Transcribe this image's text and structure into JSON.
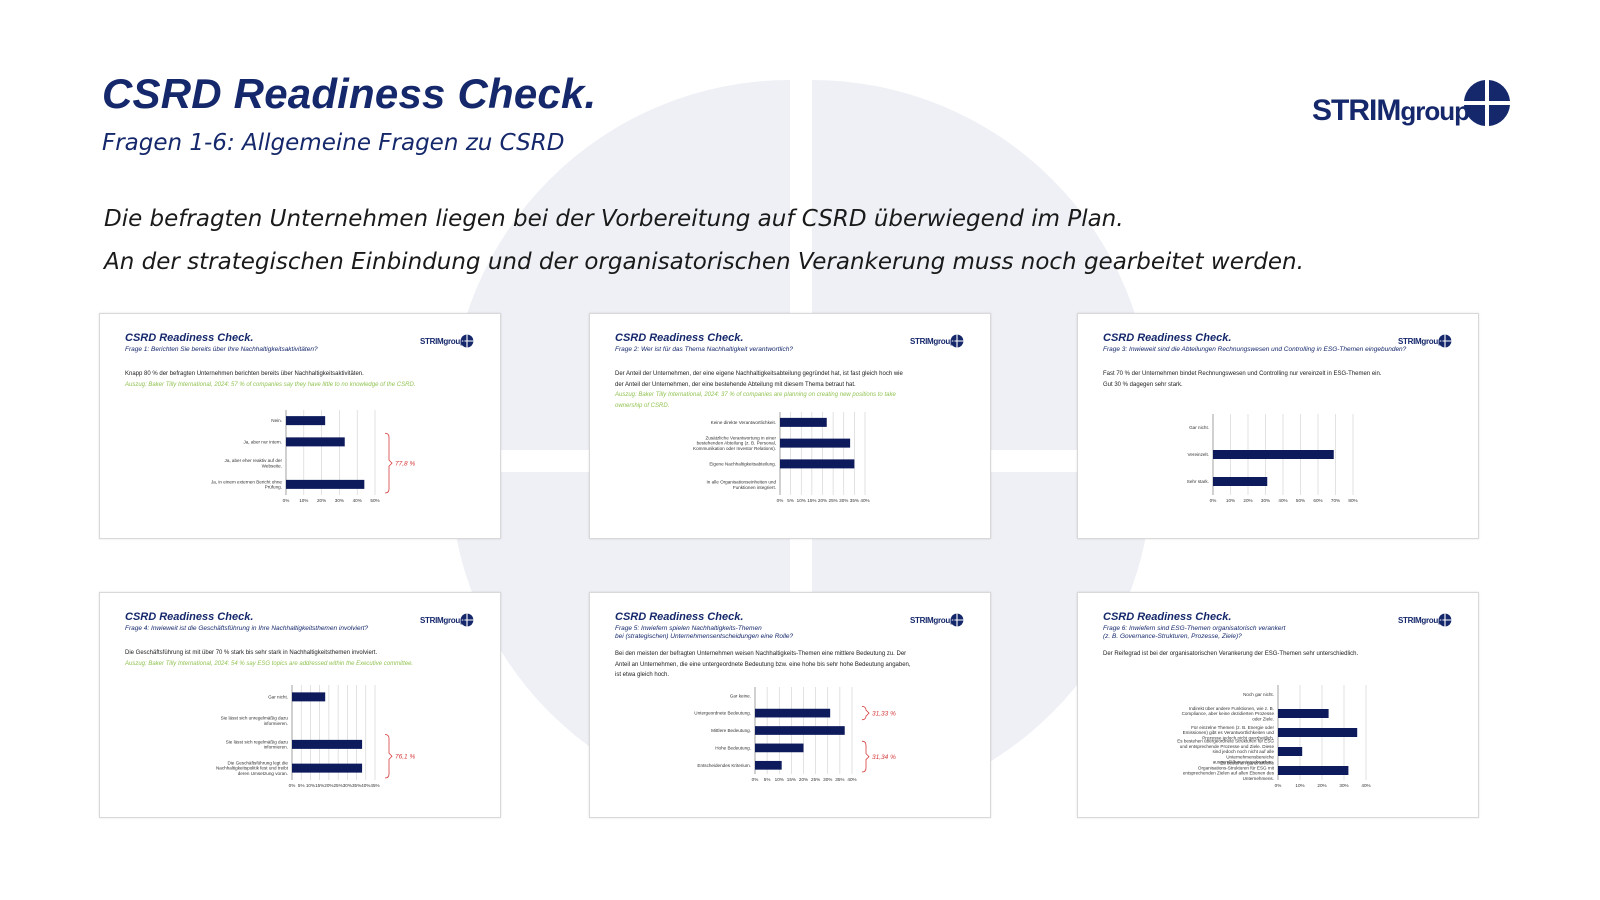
{
  "page": {
    "title": "CSRD Readiness Check.",
    "subtitle": "Fragen 1-6: Allgemeine Fragen zu CSRD",
    "intro": [
      "Die befragten Unternehmen liegen bei der Vorbereitung auf CSRD überwiegend im Plan.",
      "An der strategischen Einbindung und der organisatorischen Verankerung muss noch gearbeitet werden."
    ]
  },
  "logo": {
    "prefix": "STRIM",
    "suffix": "group"
  },
  "colors": {
    "brand": "#15286b",
    "bar": "#0d1a5c",
    "accent": "#d43a3a",
    "source": "#92c353"
  },
  "cards": [
    {
      "title": "CSRD Readiness Check.",
      "question": [
        "Frage 1: Berichten Sie bereits über Ihre Nachhaltigkeitsaktivitäten?"
      ],
      "text": [
        "Knapp 80 % der befragten Unternehmen berichten bereits über Nachhaltigkeitsaktivitäten."
      ],
      "source": [
        "Auszug: Baker Tilly International, 2024: 57 % of companies say they have little to no knowledge of the CSRD."
      ]
    },
    {
      "title": "CSRD Readiness Check.",
      "question": [
        "Frage 2: Wer ist für das Thema Nachhaltigkeit verantwortlich?"
      ],
      "text": [
        "Der Anteil der Unternehmen, der eine eigene Nachhaltigkeitsabteilung gegründet hat, ist fast gleich hoch wie",
        "der Anteil der Unternehmen, der eine bestehende Abteilung mit diesem Thema betraut hat."
      ],
      "source": [
        "Auszug: Baker Tilly International, 2024: 37 % of companies are planning on creating new positions to take",
        "ownership of CSRD."
      ]
    },
    {
      "title": "CSRD Readiness Check.",
      "question": [
        "Frage 3: Inwieweit sind die Abteilungen Rechnungswesen und Controlling in ESG-Themen eingebunden?"
      ],
      "text": [
        "Fast 70 % der Unternehmen bindet Rechnungswesen und Controlling nur vereinzelt in ESG-Themen ein.",
        "Gut 30 % dagegen sehr stark."
      ],
      "source": []
    },
    {
      "title": "CSRD Readiness Check.",
      "question": [
        "Frage 4: Inwieweit ist die Geschäftsführung in Ihre Nachhaltigkeitsthemen involviert?"
      ],
      "text": [
        "Die Geschäftsführung ist mit über 70 % stark bis sehr stark in Nachhaltigkeitsthemen involviert."
      ],
      "source": [
        "Auszug: Baker Tilly International, 2024: 54 % say ESG topics are addressed within the Executive committee."
      ]
    },
    {
      "title": "CSRD Readiness Check.",
      "question": [
        "Frage 5: Inwiefern spielen Nachhaltigkeits-Themen",
        "bei (strategischen) Unternehmensentscheidungen eine Rolle?"
      ],
      "text": [
        "Bei den meisten der befragten Unternehmen weisen Nachhaltigkeits-Themen eine mittlere Bedeutung zu. Der",
        "Anteil an Unternehmen, die eine untergeordnete Bedeutung bzw. eine hohe bis sehr hohe Bedeutung angaben,",
        "ist etwa gleich hoch."
      ],
      "source": []
    },
    {
      "title": "CSRD Readiness Check.",
      "question": [
        "Frage 6: Inwiefern sind ESG-Themen organisatorisch verankert",
        "(z. B. Governance-Strukturen, Prozesse, Ziele)?"
      ],
      "text": [
        "Der Reifegrad ist bei der organisatorischen Verankerung der ESG-Themen sehr unterschiedlich."
      ],
      "source": []
    }
  ],
  "chart_data": [
    {
      "type": "bar",
      "orientation": "horizontal",
      "categories": [
        "Nein.",
        "Ja, aber nur intern.",
        "Ja, aber eher reaktiv auf der Webseite.",
        "Ja, in einem externen Bericht ohne Prüfung."
      ],
      "values": [
        22,
        33,
        0,
        44
      ],
      "xlim": [
        0,
        50
      ],
      "xticks": [
        "0%",
        "10%",
        "20%",
        "30%",
        "40%",
        "50%"
      ],
      "annotations": [
        {
          "text": "77,8 %",
          "group": [
            1,
            3
          ]
        }
      ]
    },
    {
      "type": "bar",
      "orientation": "horizontal",
      "categories": [
        "Keine direkte Verantwortlichkeit.",
        "Zusätzliche Verantwortung in einer bestehenden Abteilung (z. B. Personal, Kommunikation oder Investor Relations).",
        "Eigene Nachhaltigkeitsabteilung.",
        "In alle Organisationseinheiten und Funktionen integriert."
      ],
      "values": [
        22,
        33,
        35,
        0
      ],
      "xlim": [
        0,
        40
      ],
      "xticks": [
        "0%",
        "5%",
        "10%",
        "15%",
        "20%",
        "25%",
        "30%",
        "35%",
        "40%"
      ],
      "annotations": []
    },
    {
      "type": "bar",
      "orientation": "horizontal",
      "categories": [
        "Gar nicht.",
        "Vereinzelt.",
        "Sehr stark."
      ],
      "values": [
        0,
        69,
        31
      ],
      "xlim": [
        0,
        80
      ],
      "xticks": [
        "0%",
        "10%",
        "20%",
        "30%",
        "40%",
        "50%",
        "60%",
        "70%",
        "80%"
      ],
      "annotations": []
    },
    {
      "type": "bar",
      "orientation": "horizontal",
      "categories": [
        "Gar nicht.",
        "Sie lässt sich unregelmäßig dazu informieren.",
        "Sie lässt sich regelmäßig dazu informieren.",
        "Die Geschäftsführung legt die Nachhaltigkeitspolitik fest und treibt deren Umsetzung voran."
      ],
      "values": [
        18,
        0,
        38,
        38
      ],
      "xlim": [
        0,
        45
      ],
      "xticks": [
        "0%",
        "5%",
        "10%",
        "15%",
        "20%",
        "25%",
        "30%",
        "35%",
        "40%",
        "45%"
      ],
      "annotations": [
        {
          "text": "76,1 %",
          "group": [
            2,
            3
          ]
        }
      ]
    },
    {
      "type": "bar",
      "orientation": "horizontal",
      "categories": [
        "Gar keine.",
        "Untergeordnete Bedeutung.",
        "Mittlere Bedeutung.",
        "Hohe Bedeutung.",
        "Entscheidendes Kriterium."
      ],
      "values": [
        0,
        31,
        37,
        20,
        11
      ],
      "xlim": [
        0,
        40
      ],
      "xticks": [
        "0%",
        "5%",
        "10%",
        "15%",
        "20%",
        "25%",
        "30%",
        "35%",
        "40%"
      ],
      "annotations": [
        {
          "text": "31,33 %",
          "group": [
            1,
            1
          ]
        },
        {
          "text": "31,34 %",
          "group": [
            3,
            4
          ]
        }
      ]
    },
    {
      "type": "bar",
      "orientation": "horizontal",
      "categories": [
        "Noch gar nicht.",
        "Indirekt über andere Funktionen, wie z. B. Compliance, aber keine dezidierten Prozesse oder Ziele.",
        "Für einzelne Themen (z. B. Energie oder Emissionen) gibt es Verantwortlichkeiten und Prozesse jedoch nicht ganzheitlich.",
        "Es bestehen übergeordnete Strukturen für ESG und entsprechende Prozesse und Ziele. Diese sind jedoch noch nicht auf alle Unternehmensbereiche ausgerollt/heruntergebrochen.",
        "Es bestehen ganzheitliche Organisations-Strukturen für ESG mit entsprechenden Zielen auf allen Ebenen des Unternehmens."
      ],
      "values": [
        0,
        23,
        36,
        11,
        32
      ],
      "xlim": [
        0,
        40
      ],
      "xticks": [
        "0%",
        "10%",
        "20%",
        "30%",
        "40%"
      ],
      "annotations": []
    }
  ]
}
